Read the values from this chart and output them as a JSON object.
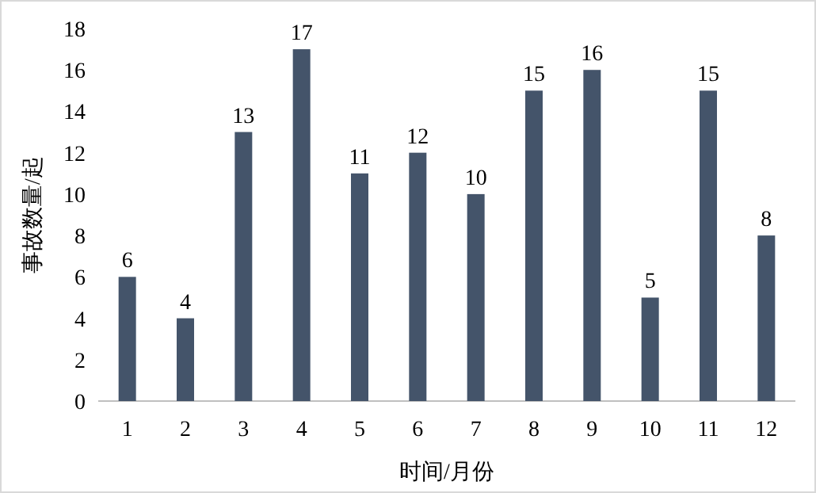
{
  "chart_data": {
    "type": "bar",
    "xlabel": "时间/月份",
    "ylabel": "事故数量/起",
    "categories": [
      "1",
      "2",
      "3",
      "4",
      "5",
      "6",
      "7",
      "8",
      "9",
      "10",
      "11",
      "12"
    ],
    "values": [
      6,
      4,
      13,
      17,
      11,
      12,
      10,
      15,
      16,
      5,
      15,
      8
    ],
    "color": "#44546a",
    "ylim": [
      0,
      18
    ],
    "yticks": [
      0,
      2,
      4,
      6,
      8,
      10,
      12,
      14,
      16,
      18
    ],
    "data_labels": true,
    "grid": false
  }
}
